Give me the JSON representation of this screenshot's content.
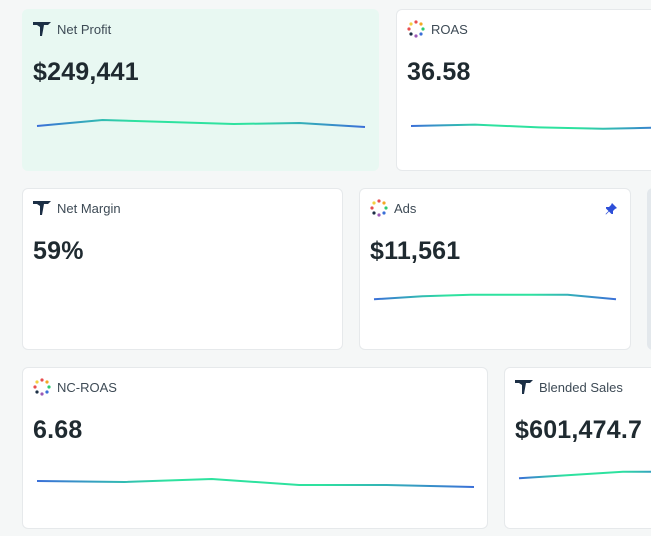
{
  "colors": {
    "accent_teal": "#2ee29f",
    "accent_blue": "#3a6fd8",
    "highlight_bg": "#e8f8f2",
    "pin_blue": "#2d4fd8"
  },
  "cards": [
    {
      "title": "Net Profit",
      "value": "$249,441",
      "icon": "triple-whale-logo-icon",
      "trend": [
        0.55,
        0.25,
        0.35,
        0.45,
        0.4,
        0.6
      ]
    },
    {
      "title": "ROAS",
      "value": "36.58",
      "icon": "multicolor-dots-icon",
      "trend": [
        0.5,
        0.4,
        0.6,
        0.7,
        0.6
      ]
    },
    {
      "title": "Net Margin",
      "value": "59%",
      "icon": "triple-whale-logo-icon"
    },
    {
      "title": "Ads",
      "value": "$11,561",
      "icon": "multicolor-dots-icon",
      "pinned": true,
      "trend": [
        0.75,
        0.55,
        0.45,
        0.45,
        0.45,
        0.75
      ]
    },
    {
      "title": "NC-ROAS",
      "value": "6.68",
      "icon": "multicolor-dots-icon",
      "trend": [
        0.4,
        0.45,
        0.3,
        0.6,
        0.6,
        0.7
      ]
    },
    {
      "title": "Blended Sales",
      "value": "$601,474.7",
      "icon": "triple-whale-logo-icon",
      "trend": [
        0.7,
        0.5,
        0.3,
        0.3
      ]
    }
  ]
}
